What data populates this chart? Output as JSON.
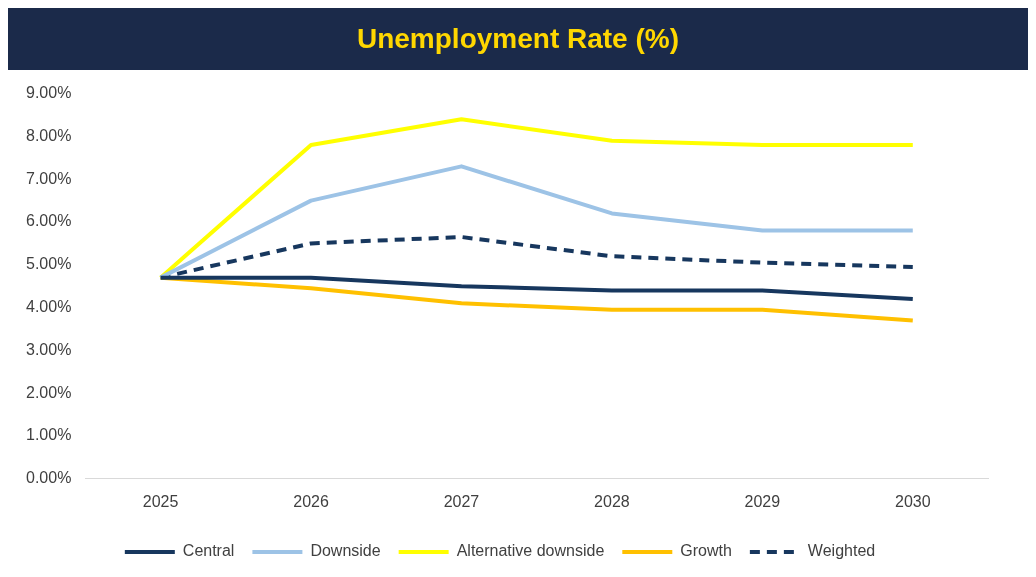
{
  "chart_data": {
    "type": "line",
    "title": "Unemployment Rate (%)",
    "categories": [
      "2025",
      "2026",
      "2027",
      "2028",
      "2029",
      "2030"
    ],
    "series": [
      {
        "name": "Central",
        "color": "#17375e",
        "values": [
          4.7,
          4.7,
          4.5,
          4.4,
          4.4,
          4.2
        ]
      },
      {
        "name": "Downside",
        "color": "#9dc3e6",
        "values": [
          4.7,
          6.5,
          7.3,
          6.2,
          5.8,
          5.8
        ]
      },
      {
        "name": "Alternative downside",
        "color": "#ffff00",
        "values": [
          4.7,
          7.8,
          8.4,
          7.9,
          7.8,
          7.8
        ]
      },
      {
        "name": "Growth",
        "color": "#ffc000",
        "values": [
          4.7,
          4.45,
          4.1,
          3.95,
          3.95,
          3.7
        ]
      },
      {
        "name": "Weighted",
        "color": "#17375e",
        "line_style": "dashed",
        "values": [
          4.7,
          5.5,
          5.65,
          5.2,
          5.05,
          4.95
        ]
      }
    ],
    "ylim": [
      0,
      9
    ],
    "yticks": [
      {
        "value": 0,
        "label": "0.00%"
      },
      {
        "value": 1,
        "label": "1.00%"
      },
      {
        "value": 2,
        "label": "2.00%"
      },
      {
        "value": 3,
        "label": "3.00%"
      },
      {
        "value": 4,
        "label": "4.00%"
      },
      {
        "value": 5,
        "label": "5.00%"
      },
      {
        "value": 6,
        "label": "6.00%"
      },
      {
        "value": 7,
        "label": "7.00%"
      },
      {
        "value": 8,
        "label": "8.00%"
      },
      {
        "value": 9,
        "label": "9.00%"
      }
    ],
    "grid": false,
    "legend": "bottom",
    "marker": "none",
    "line_style": "solid"
  }
}
